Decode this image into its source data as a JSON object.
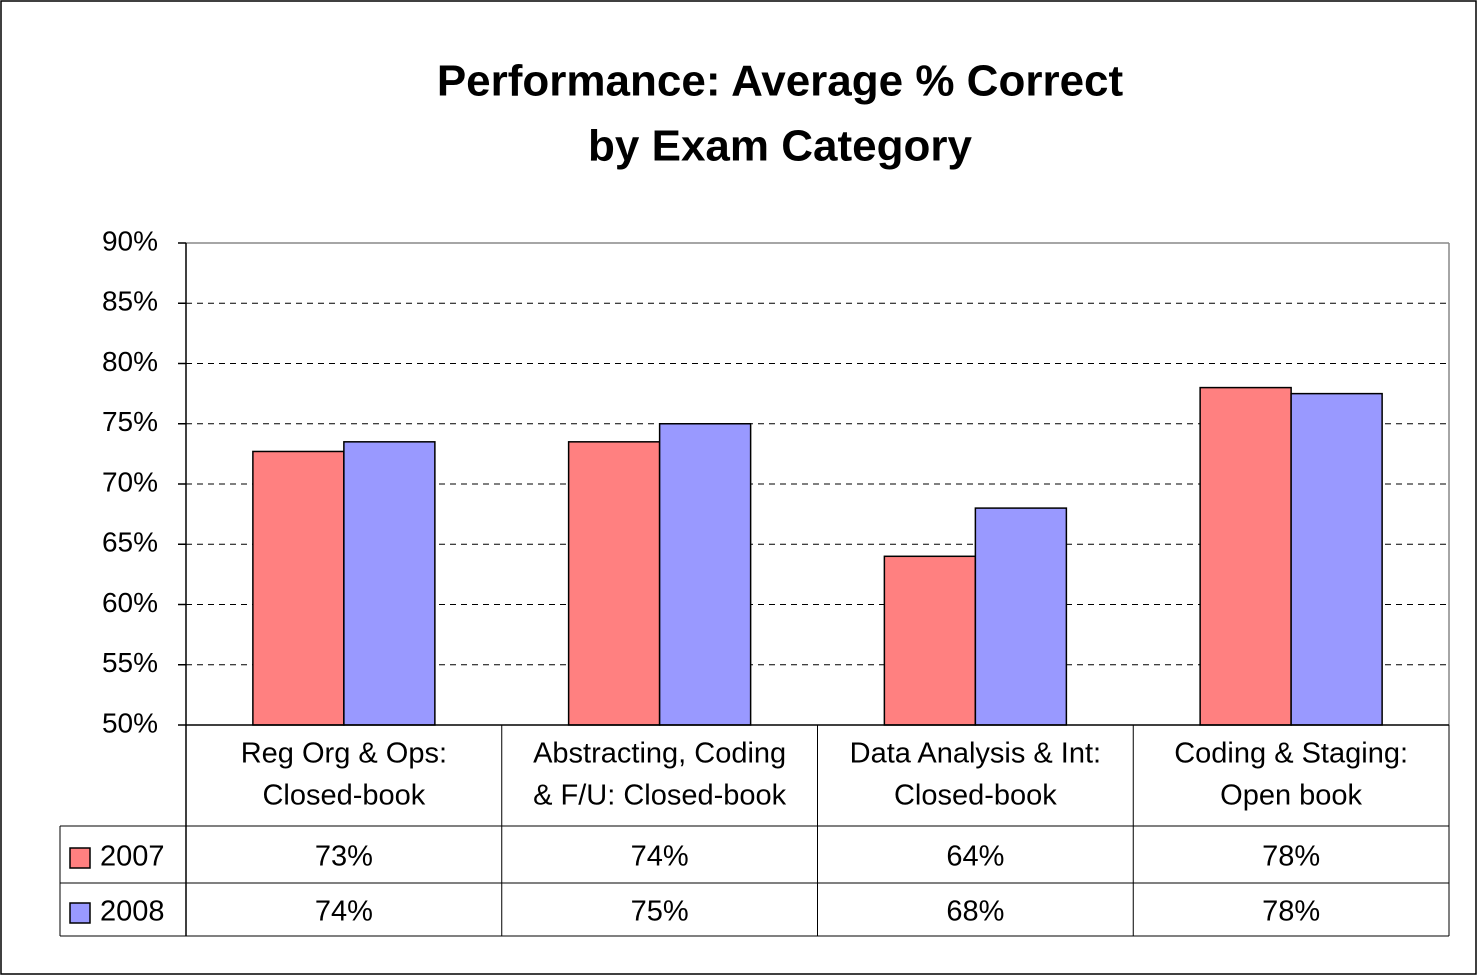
{
  "chart_data": {
    "type": "bar",
    "title": [
      "Performance: Average % Correct",
      "by Exam Category"
    ],
    "categories": [
      [
        "Reg Org & Ops:",
        "Closed-book"
      ],
      [
        "Abstracting, Coding",
        "& F/U: Closed-book"
      ],
      [
        "Data Analysis & Int:",
        "Closed-book"
      ],
      [
        "Coding & Staging:",
        "Open book"
      ]
    ],
    "series": [
      {
        "name": "2007",
        "color": "#ff8080",
        "values": [
          72.7,
          73.5,
          64,
          78
        ],
        "value_labels": [
          "73%",
          "74%",
          "64%",
          "78%"
        ]
      },
      {
        "name": "2008",
        "color": "#9999ff",
        "values": [
          73.5,
          75,
          68,
          77.5
        ],
        "value_labels": [
          "74%",
          "75%",
          "68%",
          "78%"
        ]
      }
    ],
    "ylim": [
      50,
      90
    ],
    "yticks": [
      {
        "value": 50,
        "label": "50%"
      },
      {
        "value": 55,
        "label": "55%"
      },
      {
        "value": 60,
        "label": "60%"
      },
      {
        "value": 65,
        "label": "65%"
      },
      {
        "value": 70,
        "label": "70%"
      },
      {
        "value": 75,
        "label": "75%"
      },
      {
        "value": 80,
        "label": "80%"
      },
      {
        "value": 85,
        "label": "85%"
      },
      {
        "value": 90,
        "label": "90%"
      }
    ],
    "grid": true
  }
}
